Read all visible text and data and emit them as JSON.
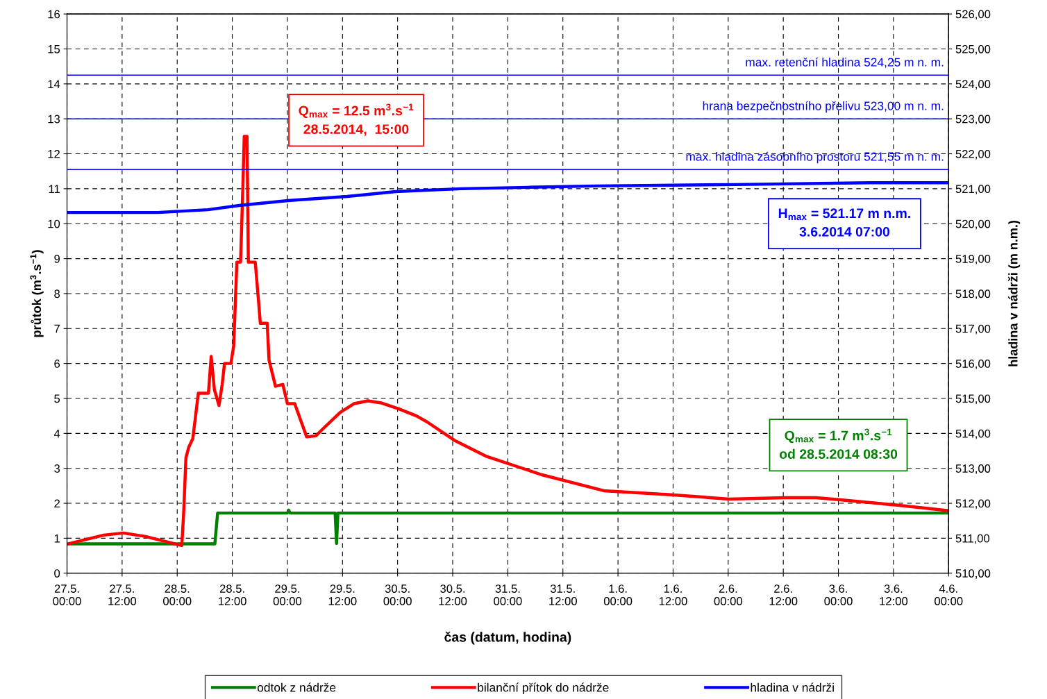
{
  "chart_data": {
    "type": "line",
    "xlabel": "čas (datum, hodina)",
    "ylabel": "průtok (m$^{3}$.s$^{−1}$)",
    "y2label": "hladina v nádrži (m n.m.)",
    "xlim": [
      "2014-05-27T00:00",
      "2014-06-04T00:00"
    ],
    "xticks": [
      {
        "value": "2014-05-27T00:00",
        "label": "27.5.\n00:00"
      },
      {
        "value": "2014-05-27T12:00",
        "label": "27.5.\n12:00"
      },
      {
        "value": "2014-05-28T00:00",
        "label": "28.5.\n00:00"
      },
      {
        "value": "2014-05-28T12:00",
        "label": "28.5.\n12:00"
      },
      {
        "value": "2014-05-29T00:00",
        "label": "29.5.\n00:00"
      },
      {
        "value": "2014-05-29T12:00",
        "label": "29.5.\n12:00"
      },
      {
        "value": "2014-05-30T00:00",
        "label": "30.5.\n00:00"
      },
      {
        "value": "2014-05-30T12:00",
        "label": "30.5.\n12:00"
      },
      {
        "value": "2014-05-31T00:00",
        "label": "31.5.\n00:00"
      },
      {
        "value": "2014-05-31T12:00",
        "label": "31.5.\n12:00"
      },
      {
        "value": "2014-06-01T00:00",
        "label": "1.6.\n00:00"
      },
      {
        "value": "2014-06-01T12:00",
        "label": "1.6.\n12:00"
      },
      {
        "value": "2014-06-02T00:00",
        "label": "2.6.\n00:00"
      },
      {
        "value": "2014-06-02T12:00",
        "label": "2.6.\n12:00"
      },
      {
        "value": "2014-06-03T00:00",
        "label": "3.6.\n00:00"
      },
      {
        "value": "2014-06-03T12:00",
        "label": "3.6.\n12:00"
      },
      {
        "value": "2014-06-04T00:00",
        "label": "4.6.\n00:00"
      }
    ],
    "ylim": [
      0,
      16
    ],
    "yticks": [
      0,
      1,
      2,
      3,
      4,
      5,
      6,
      7,
      8,
      9,
      10,
      11,
      12,
      13,
      14,
      15,
      16
    ],
    "y2lim": [
      510,
      526
    ],
    "y2ticks": [
      {
        "value": 510,
        "label": "510,00"
      },
      {
        "value": 511,
        "label": "511,00"
      },
      {
        "value": 512,
        "label": "512,00"
      },
      {
        "value": 513,
        "label": "513,00"
      },
      {
        "value": 514,
        "label": "514,00"
      },
      {
        "value": 515,
        "label": "515,00"
      },
      {
        "value": 516,
        "label": "516,00"
      },
      {
        "value": 517,
        "label": "517,00"
      },
      {
        "value": 518,
        "label": "518,00"
      },
      {
        "value": 519,
        "label": "519,00"
      },
      {
        "value": 520,
        "label": "520,00"
      },
      {
        "value": 521,
        "label": "521,00"
      },
      {
        "value": 522,
        "label": "522,00"
      },
      {
        "value": 523,
        "label": "523,00"
      },
      {
        "value": 524,
        "label": "524,00"
      },
      {
        "value": 525,
        "label": "525,00"
      },
      {
        "value": 526,
        "label": "526,00"
      }
    ],
    "grid": true,
    "legend": "bottom",
    "line_style": "solid",
    "marker": "none",
    "series": [
      {
        "name": "odtok z nádrže",
        "color": "#008000",
        "x": [
          "2014-05-27T00:00",
          "2014-05-28T08:12",
          "2014-05-28T08:48",
          "2014-05-29T00:00",
          "2014-05-29T00:18",
          "2014-05-29T00:36",
          "2014-05-29T10:24",
          "2014-05-29T10:42",
          "2014-05-29T11:00",
          "2014-06-04T00:00"
        ],
        "values": [
          0.84,
          0.84,
          1.72,
          1.72,
          1.8,
          1.72,
          1.72,
          0.85,
          1.72,
          1.72
        ]
      },
      {
        "name": "bilanční přítok do nádrže",
        "color": "#ff0000",
        "x": [
          "2014-05-27T00:00",
          "2014-05-27T08:00",
          "2014-05-27T12:18",
          "2014-05-27T17:06",
          "2014-05-28T01:00",
          "2014-05-28T01:24",
          "2014-05-28T01:54",
          "2014-05-28T02:30",
          "2014-05-28T03:24",
          "2014-05-28T04:00",
          "2014-05-28T04:36",
          "2014-05-28T06:48",
          "2014-05-28T07:24",
          "2014-05-28T08:06",
          "2014-05-28T09:06",
          "2014-05-28T09:48",
          "2014-05-28T10:18",
          "2014-05-28T11:42",
          "2014-05-28T12:18",
          "2014-05-28T13:00",
          "2014-05-28T13:48",
          "2014-05-28T14:18",
          "2014-05-28T14:36",
          "2014-05-28T15:12",
          "2014-05-28T15:30",
          "2014-05-28T17:00",
          "2014-05-28T17:48",
          "2014-05-28T18:06",
          "2014-05-28T19:36",
          "2014-05-28T20:00",
          "2014-05-28T21:24",
          "2014-05-28T23:00",
          "2014-05-29T00:00",
          "2014-05-29T01:36",
          "2014-05-29T03:06",
          "2014-05-29T04:12",
          "2014-05-29T06:12",
          "2014-05-29T07:54",
          "2014-05-29T11:30",
          "2014-05-29T14:30",
          "2014-05-29T17:30",
          "2014-05-29T20:30",
          "2014-05-30T00:18",
          "2014-05-30T04:06",
          "2014-05-30T06:24",
          "2014-05-30T12:24",
          "2014-05-30T19:12",
          "2014-05-31T07:18",
          "2014-05-31T20:54",
          "2014-06-01T12:06",
          "2014-06-02T00:12",
          "2014-06-02T12:18",
          "2014-06-02T19:06",
          "2014-06-03T00:24",
          "2014-06-03T12:30",
          "2014-06-04T00:00"
        ],
        "values": [
          0.83,
          1.09,
          1.15,
          1.05,
          0.79,
          1.7,
          3.3,
          3.6,
          3.85,
          4.5,
          5.15,
          5.15,
          6.2,
          5.25,
          4.8,
          5.4,
          6.0,
          6.0,
          6.5,
          8.9,
          8.9,
          11.05,
          12.5,
          12.5,
          8.9,
          8.9,
          7.65,
          7.15,
          7.15,
          6.1,
          5.35,
          5.4,
          4.85,
          4.85,
          4.3,
          3.9,
          3.93,
          4.15,
          4.6,
          4.85,
          4.93,
          4.87,
          4.7,
          4.5,
          4.33,
          3.8,
          3.35,
          2.82,
          2.36,
          2.24,
          2.12,
          2.16,
          2.16,
          2.1,
          1.95,
          1.79
        ]
      },
      {
        "name": "hladina v nádrži",
        "color": "#0000ff",
        "axis": "y2",
        "x": [
          "2014-05-27T00:00",
          "2014-05-27T19:48",
          "2014-05-28T06:42",
          "2014-05-28T13:30",
          "2014-05-29T00:06",
          "2014-05-29T13:00",
          "2014-05-29T23:36",
          "2014-05-30T13:54",
          "2014-05-31T04:18",
          "2014-05-31T19:24",
          "2014-06-02T01:42",
          "2014-06-03T07:00",
          "2014-06-04T00:00"
        ],
        "values": [
          520.32,
          520.32,
          520.4,
          520.52,
          520.66,
          520.78,
          520.92,
          521.0,
          521.04,
          521.08,
          521.12,
          521.17,
          521.17
        ]
      }
    ],
    "ref_lines": [
      {
        "axis": "y2",
        "value": 524.25,
        "label": "max. retenční hladina 524,25 m n. m.",
        "color": "#0000ff"
      },
      {
        "axis": "y2",
        "value": 523.0,
        "label": "hrana bezpečnostního přelivu 523,00 m n. m.",
        "color": "#0000ff"
      },
      {
        "axis": "y2",
        "value": 521.55,
        "label": "max. hladina zásobního prostoru 521,55 m n. m.",
        "color": "#0000ff"
      }
    ],
    "annotations": [
      "Q$_{max}$ = 12.5 m$^{3}$.s$^{−1}$\n28.5.2014,  15:00",
      "H$_{max}$ = 521.17 m n.m.\n3.6.2014 07:00",
      "Q$_{max}$ = 1.7 m$^{3}$.s$^{−1}$\nod 28.5.2014 08:30"
    ]
  }
}
